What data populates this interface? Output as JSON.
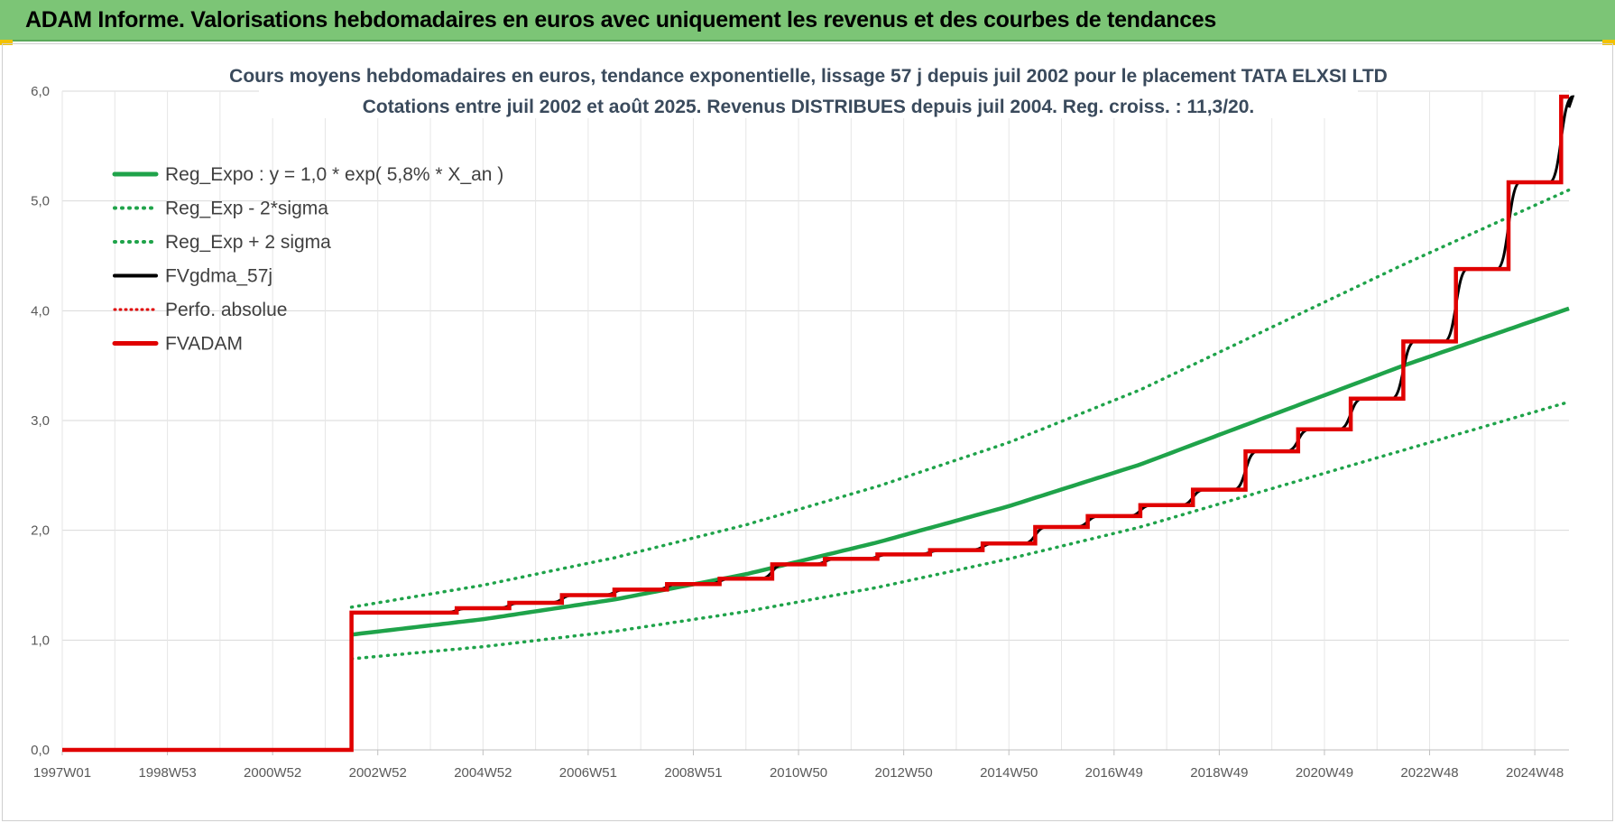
{
  "header": {
    "title": "ADAM Informe. Valorisations hebdomadaires en euros avec uniquement les revenus et des courbes de tendances"
  },
  "colors": {
    "header_bg": "#7cc576",
    "reg_expo": "#1fa34a",
    "sigma": "#1fa34a",
    "fvgdma": "#000000",
    "perfo": "#e00000",
    "fvadam": "#e00000",
    "grid": "#d9d9d9"
  },
  "chart_data": {
    "type": "line",
    "title": "Cours moyens hebdomadaires en euros, tendance exponentielle, lissage 57 j depuis juil 2002 pour le placement TATA ELXSI LTD",
    "subtitle": "Cotations entre juil 2002 et août 2025. Revenus DISTRIBUES depuis juil 2004. Reg. croiss. : 11,3/20.",
    "xlabel": "",
    "ylabel": "",
    "ylim": [
      0,
      6
    ],
    "yticks": [
      "0,0",
      "1,0",
      "2,0",
      "3,0",
      "4,0",
      "5,0",
      "6,0"
    ],
    "x_range_years": [
      1997.0,
      2025.65
    ],
    "xtick_labels": [
      "1997W01",
      "1998W53",
      "2000W52",
      "2002W52",
      "2004W52",
      "2006W51",
      "2008W51",
      "2010W50",
      "2012W50",
      "2014W50",
      "2016W49",
      "2018W49",
      "2020W49",
      "2022W48",
      "2024W48"
    ],
    "xtick_years": [
      1997.0,
      1999.0,
      2001.0,
      2003.0,
      2005.0,
      2007.0,
      2009.0,
      2011.0,
      2013.0,
      2015.0,
      2017.0,
      2019.0,
      2021.0,
      2023.0,
      2025.0
    ],
    "grid": true,
    "legend_position": "top-left",
    "legend": [
      {
        "name": "Reg_Expo : y = 1,0 * exp( 5,8% *  X_an )",
        "style": "solid-green"
      },
      {
        "name": "Reg_Exp - 2*sigma",
        "style": "dotted-green"
      },
      {
        "name": "Reg_Exp + 2 sigma",
        "style": "dotted-green"
      },
      {
        "name": "FVgdma_57j",
        "style": "solid-black"
      },
      {
        "name": "Perfo. absolue",
        "style": "dotted-red"
      },
      {
        "name": "FVADAM",
        "style": "solid-red"
      }
    ],
    "series": [
      {
        "name": "Reg_Expo : y = 1,0 * exp( 5,8% *  X_an )",
        "x": [
          2002.5,
          2005,
          2007.5,
          2010,
          2012.5,
          2015,
          2017.5,
          2020,
          2022.5,
          2025.65
        ],
        "values": [
          1.05,
          1.19,
          1.37,
          1.6,
          1.89,
          2.22,
          2.6,
          3.05,
          3.5,
          4.02
        ]
      },
      {
        "name": "Reg_Exp - 2*sigma",
        "x": [
          2002.5,
          2005,
          2007.5,
          2010,
          2012.5,
          2015,
          2017.5,
          2020,
          2022.5,
          2025.65
        ],
        "values": [
          0.83,
          0.94,
          1.08,
          1.26,
          1.48,
          1.74,
          2.03,
          2.38,
          2.73,
          3.17
        ]
      },
      {
        "name": "Reg_Exp + 2 sigma",
        "x": [
          2002.5,
          2005,
          2007.5,
          2010,
          2012.5,
          2015,
          2017.5,
          2020,
          2022.5,
          2025.65
        ],
        "values": [
          1.3,
          1.5,
          1.75,
          2.05,
          2.4,
          2.8,
          3.28,
          3.85,
          4.42,
          5.1
        ]
      },
      {
        "name": "FVADAM",
        "x": [
          1997.0,
          2002.5,
          2004.5,
          2005.5,
          2006.5,
          2007.5,
          2008.5,
          2009.5,
          2010.5,
          2011.5,
          2012.5,
          2013.5,
          2014.5,
          2015.5,
          2016.5,
          2017.5,
          2018.5,
          2019.5,
          2020.5,
          2021.5,
          2022.5,
          2023.5,
          2024.5,
          2025.5
        ],
        "values": [
          0.0,
          1.25,
          1.29,
          1.34,
          1.41,
          1.46,
          1.51,
          1.56,
          1.69,
          1.74,
          1.78,
          1.82,
          1.88,
          2.03,
          2.13,
          2.23,
          2.37,
          2.72,
          2.92,
          3.2,
          3.72,
          4.38,
          5.17,
          5.95
        ],
        "step": true,
        "x_end": 2025.65
      },
      {
        "name": "FVgdma_57j",
        "smooth_of": "FVADAM"
      }
    ]
  }
}
